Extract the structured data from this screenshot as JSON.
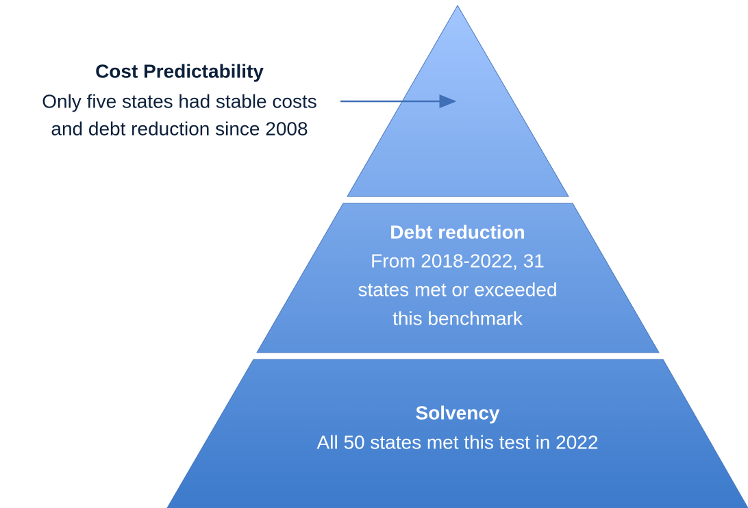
{
  "annotation": {
    "title": "Cost Predictability",
    "lines": [
      "Only five states had stable costs",
      "and debt reduction since 2008"
    ]
  },
  "tiers": [
    {
      "title": "Debt reduction",
      "lines": [
        "From 2018-2022, 31",
        "states met or exceeded",
        "this benchmark"
      ]
    },
    {
      "title": "Solvency",
      "lines": [
        "All 50 states met this test in 2022"
      ]
    }
  ]
}
